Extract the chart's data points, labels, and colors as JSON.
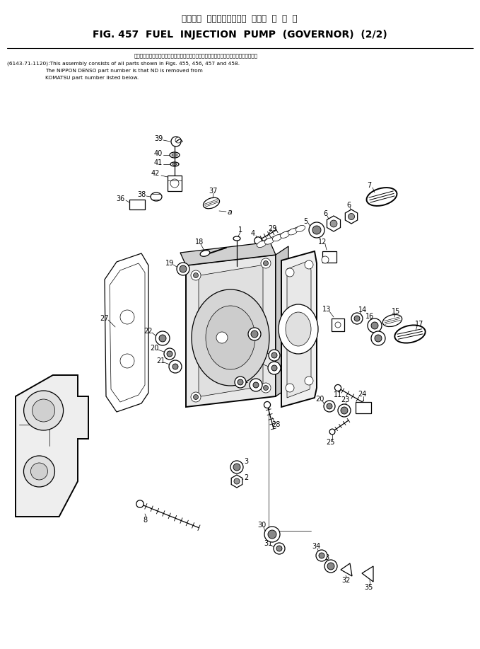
{
  "title_japanese": "フェエル  インジェクション  ポンプ  ガ  バ  ナ",
  "title_english": "FIG. 457  FUEL  INJECTION  PUMP  (GOVERNOR)  (2/2)",
  "note_line1": "このアセンブリの構成部品は図４５５、４５６、４５７および図４５８を見てください。",
  "note_line2": "(6143-71-1120):This assembly consists of all parts shown in Figs. 455, 456, 457 and 458.",
  "note_line3": "The NIPPON DENSO part number is that ND is removed from",
  "note_line4": "KOMATSU part number listed below.",
  "bg_color": "#ffffff",
  "fg_color": "#000000",
  "lw_thin": 0.5,
  "lw_med": 0.9,
  "lw_thick": 1.4,
  "lw_heavy": 1.8
}
